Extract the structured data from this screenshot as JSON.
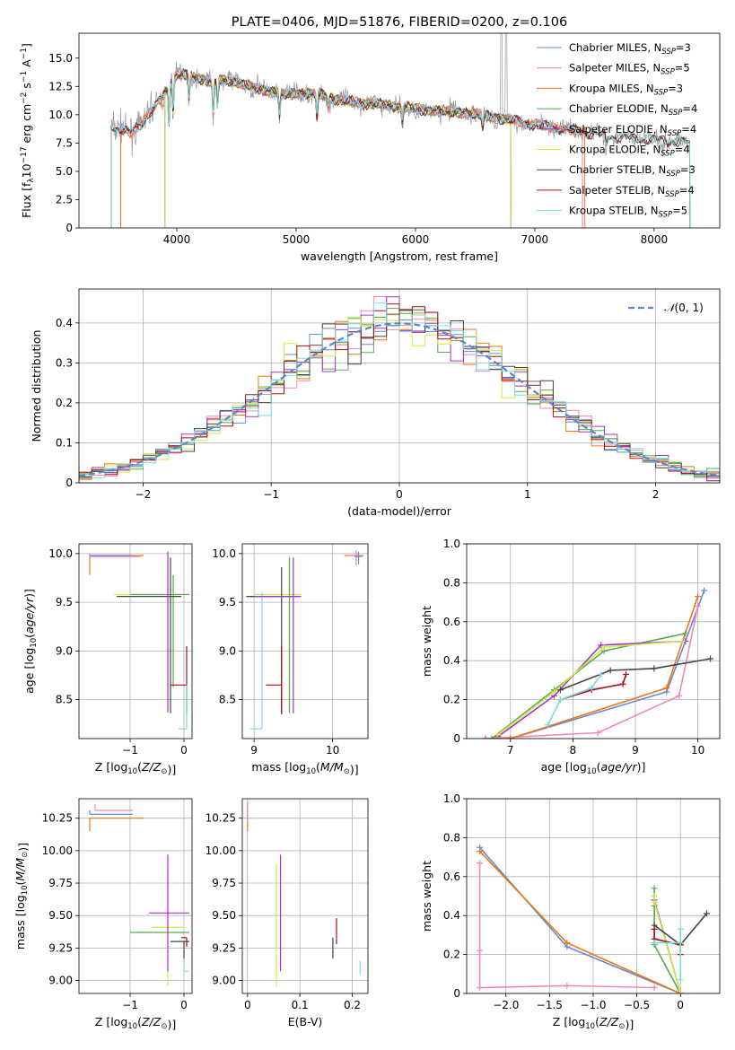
{
  "colors": {
    "c_miles": "#6688dd",
    "s_miles": "#ee88bb",
    "k_miles": "#ee7711",
    "c_elodie": "#55aa55",
    "s_elodie": "#aa33cc",
    "k_elodie": "#ccee44",
    "c_stelib": "#444444",
    "s_stelib": "#aa1111",
    "k_stelib": "#77dddd",
    "data": "#999999"
  },
  "chart_data": [
    {
      "id": "spectrum",
      "type": "line",
      "title": "PLATE=0406, MJD=51876, FIBERID=0200, z=0.106",
      "xlabel": "wavelength [Angstrom, rest frame]",
      "ylabel": "Flux [f$_\\lambda$10$^{-17}$ erg cm$^{-2}$ s$^{-1}$ A$^{-1}$]",
      "ylabel_html": "Flux [f<tspan font-size='9' dy='3'>λ</tspan><tspan dy='-3'>10</tspan><tspan font-size='9' dy='-5'>−17</tspan><tspan dy='5'> erg cm</tspan><tspan font-size='9' dy='-5'>−2</tspan><tspan dy='5'> s</tspan><tspan font-size='9' dy='-5'>−1</tspan><tspan dy='5'> A</tspan><tspan font-size='9' dy='-5'>−1</tspan><tspan dy='5'>]</tspan>",
      "xlim": [
        3180,
        8550
      ],
      "ylim": [
        0,
        17.2
      ],
      "xticks": [
        4000,
        5000,
        6000,
        7000,
        8000
      ],
      "yticks": [
        0.0,
        2.5,
        5.0,
        7.5,
        10.0,
        12.5,
        15.0
      ],
      "continuum": [
        [
          3450,
          9.0
        ],
        [
          3600,
          8.4
        ],
        [
          3700,
          9.2
        ],
        [
          3800,
          10.4
        ],
        [
          3900,
          12.0
        ],
        [
          4000,
          13.6
        ],
        [
          4100,
          13.4
        ],
        [
          4200,
          13.2
        ],
        [
          4300,
          12.8
        ],
        [
          4400,
          13.1
        ],
        [
          4500,
          12.9
        ],
        [
          4600,
          12.5
        ],
        [
          4700,
          12.3
        ],
        [
          4800,
          12.0
        ],
        [
          4900,
          11.8
        ],
        [
          5000,
          11.9
        ],
        [
          5200,
          11.8
        ],
        [
          5400,
          11.2
        ],
        [
          5600,
          11.0
        ],
        [
          5800,
          10.8
        ],
        [
          6000,
          10.5
        ],
        [
          6200,
          10.3
        ],
        [
          6400,
          10.2
        ],
        [
          6600,
          9.9
        ],
        [
          6800,
          9.5
        ],
        [
          7000,
          9.1
        ],
        [
          7200,
          8.8
        ],
        [
          7400,
          8.5
        ],
        [
          7600,
          8.1
        ],
        [
          7800,
          7.9
        ],
        [
          8000,
          7.8
        ],
        [
          8200,
          7.6
        ],
        [
          8300,
          7.5
        ]
      ],
      "legend": [
        {
          "label": "Chabrier MILES, N",
          "sub": "SSP",
          "tail": "=3",
          "color": "#6688dd"
        },
        {
          "label": "Salpeter MILES, N",
          "sub": "SSP",
          "tail": "=5",
          "color": "#ee88bb"
        },
        {
          "label": "Kroupa MILES, N",
          "sub": "SSP",
          "tail": "=3",
          "color": "#ee7711"
        },
        {
          "label": "Chabrier ELODIE, N",
          "sub": "SSP",
          "tail": "=4",
          "color": "#55aa55"
        },
        {
          "label": "Salpeter ELODIE, N",
          "sub": "SSP",
          "tail": "=4",
          "color": "#aa33cc"
        },
        {
          "label": "Kroupa ELODIE, N",
          "sub": "SSP",
          "tail": "=4",
          "color": "#ccee44"
        },
        {
          "label": "Chabrier STELIB, N",
          "sub": "SSP",
          "tail": "=3",
          "color": "#444444"
        },
        {
          "label": "Salpeter STELIB, N",
          "sub": "SSP",
          "tail": "=4",
          "color": "#aa1111"
        },
        {
          "label": "Kroupa STELIB, N",
          "sub": "SSP",
          "tail": "=5",
          "color": "#77dddd"
        }
      ]
    },
    {
      "id": "residuals",
      "type": "line",
      "xlabel": "(data-model)/error",
      "ylabel": "Normed distribution",
      "xlim": [
        -2.5,
        2.5
      ],
      "ylim": [
        0,
        0.485
      ],
      "xticks": [
        -2,
        -1,
        0,
        1,
        2
      ],
      "yticks": [
        0.0,
        0.1,
        0.2,
        0.3,
        0.4
      ],
      "legend": "𝒩(0, 1)",
      "hist_bin_width": 0.1
    },
    {
      "id": "age_vs_z",
      "type": "scatter",
      "xlabel": "Z [log10(Z/Z⊙)]",
      "ylabel": "age [log10(age/yr)]",
      "xlim": [
        -1.95,
        0.15
      ],
      "ylim": [
        8.1,
        10.1
      ],
      "xticks": [
        -1,
        0
      ],
      "yticks": [
        8.5,
        9.0,
        9.5,
        10.0
      ],
      "bars": [
        {
          "x": -1.75,
          "y": 9.98,
          "xerr": [
            0,
            1.0
          ],
          "yerr": [
            0.2,
            0
          ],
          "color": "#ee7711"
        },
        {
          "x": -1.75,
          "y": 9.98,
          "xerr": [
            0,
            0.8
          ],
          "yerr": [
            0,
            0.02
          ],
          "color": "#6688dd"
        },
        {
          "x": -1.75,
          "y": 9.97,
          "xerr": [
            0,
            0.95
          ],
          "yerr": [
            0,
            0.02
          ],
          "color": "#ee88bb"
        },
        {
          "x": -0.3,
          "y": 9.58,
          "xerr": [
            1.0,
            0.4
          ],
          "yerr": [
            1.2,
            0.4
          ],
          "color": "#ccee44"
        },
        {
          "x": -0.2,
          "y": 9.58,
          "xerr": [
            0.8,
            0.3
          ],
          "yerr": [
            0.95,
            0.2
          ],
          "color": "#55aa55"
        },
        {
          "x": -0.25,
          "y": 9.56,
          "xerr": [
            1.0,
            0.2
          ],
          "yerr": [
            1.2,
            0.4
          ],
          "color": "#444444"
        },
        {
          "x": 0.05,
          "y": 8.65,
          "xerr": [
            0.3,
            0.0
          ],
          "yerr": [
            0.3,
            0.4
          ],
          "color": "#aa1111"
        },
        {
          "x": 0.05,
          "y": 8.2,
          "xerr": [
            0.15,
            0
          ],
          "yerr": [
            0,
            0.45
          ],
          "color": "#77dddd"
        },
        {
          "x": -0.3,
          "y": 9.97,
          "xerr": [
            0,
            0
          ],
          "yerr": [
            1.6,
            0.05
          ],
          "color": "#aa33cc"
        }
      ]
    },
    {
      "id": "age_vs_mass",
      "type": "scatter",
      "xlabel": "mass [log10(M/M⊙)]",
      "xlim": [
        8.85,
        10.45
      ],
      "ylim": [
        8.1,
        10.1
      ],
      "xticks": [
        9,
        10
      ],
      "yticks": [
        8.5,
        9.0,
        9.5,
        10.0
      ],
      "bars": [
        {
          "x": 10.3,
          "y": 9.98,
          "xerr": [
            0.15,
            0.05
          ],
          "yerr": [
            0.1,
            0.05
          ],
          "color": "#ee7711"
        },
        {
          "x": 10.3,
          "y": 9.98,
          "xerr": [
            0.1,
            0.1
          ],
          "yerr": [
            0.1,
            0.05
          ],
          "color": "#ee88bb"
        },
        {
          "x": 10.33,
          "y": 9.97,
          "xerr": [
            0.05,
            0.05
          ],
          "yerr": [
            0.08,
            0.05
          ],
          "color": "#6688dd"
        },
        {
          "x": 9.45,
          "y": 9.58,
          "xerr": [
            0.45,
            0.15
          ],
          "yerr": [
            1.2,
            0.4
          ],
          "color": "#ccee44"
        },
        {
          "x": 9.45,
          "y": 9.56,
          "xerr": [
            0.5,
            0.1
          ],
          "yerr": [
            1.2,
            0.4
          ],
          "color": "#55aa55"
        },
        {
          "x": 9.35,
          "y": 9.56,
          "xerr": [
            0.45,
            0.2
          ],
          "yerr": [
            1.2,
            0.3
          ],
          "color": "#444444"
        },
        {
          "x": 9.35,
          "y": 8.65,
          "xerr": [
            0.2,
            0.0
          ],
          "yerr": [
            0.3,
            0.4
          ],
          "color": "#aa1111"
        },
        {
          "x": 9.1,
          "y": 8.2,
          "xerr": [
            0.15,
            0
          ],
          "yerr": [
            0,
            1.4
          ],
          "color": "#77dddd"
        },
        {
          "x": 9.5,
          "y": 9.56,
          "xerr": [
            0.5,
            0.1
          ],
          "yerr": [
            1.2,
            0.4
          ],
          "color": "#aa33cc"
        }
      ]
    },
    {
      "id": "weight_vs_age",
      "type": "line",
      "xlabel": "age [log10(age/yr)]",
      "ylabel": "mass weight",
      "xlim": [
        6.3,
        10.35
      ],
      "ylim": [
        0,
        1.0
      ],
      "xticks": [
        7,
        8,
        9,
        10
      ],
      "yticks": [
        0.0,
        0.2,
        0.4,
        0.6,
        0.8,
        1.0
      ],
      "series": [
        {
          "color": "#6688dd",
          "x": [
            6.6,
            7.0,
            9.5,
            10.1
          ],
          "y": [
            0.0,
            0.0,
            0.24,
            0.76
          ]
        },
        {
          "color": "#ee88bb",
          "x": [
            6.6,
            8.4,
            9.7,
            10.0
          ],
          "y": [
            0.0,
            0.03,
            0.22,
            0.68
          ]
        },
        {
          "color": "#ee7711",
          "x": [
            6.6,
            7.0,
            9.5,
            10.0
          ],
          "y": [
            0.0,
            0.0,
            0.26,
            0.73
          ]
        },
        {
          "color": "#55aa55",
          "x": [
            6.7,
            7.7,
            8.5,
            9.8
          ],
          "y": [
            0.0,
            0.25,
            0.45,
            0.54
          ]
        },
        {
          "color": "#aa33cc",
          "x": [
            6.8,
            7.7,
            8.45,
            9.8
          ],
          "y": [
            0.01,
            0.22,
            0.48,
            0.5
          ]
        },
        {
          "color": "#ccee44",
          "x": [
            6.8,
            7.7,
            8.5,
            9.75
          ],
          "y": [
            0.02,
            0.24,
            0.47,
            0.5
          ]
        },
        {
          "color": "#444444",
          "x": [
            7.8,
            8.6,
            9.3,
            10.2
          ],
          "y": [
            0.25,
            0.35,
            0.36,
            0.41
          ]
        },
        {
          "color": "#aa1111",
          "x": [
            7.8,
            8.3,
            8.8,
            8.85
          ],
          "y": [
            0.2,
            0.25,
            0.28,
            0.33
          ]
        },
        {
          "color": "#77dddd",
          "x": [
            7.6,
            7.8,
            8.3,
            8.45
          ],
          "y": [
            0.07,
            0.2,
            0.26,
            0.33
          ]
        }
      ]
    },
    {
      "id": "mass_vs_z",
      "type": "scatter",
      "xlabel": "Z [log10(Z/Z⊙)]",
      "ylabel": "mass [log10(M/M⊙)]",
      "xlim": [
        -1.95,
        0.15
      ],
      "ylim": [
        8.9,
        10.4
      ],
      "xticks": [
        -1,
        0
      ],
      "yticks": [
        9.0,
        9.25,
        9.5,
        9.75,
        10.0,
        10.25
      ],
      "bars": [
        {
          "x": -1.75,
          "y": 10.25,
          "xerr": [
            0,
            1.0
          ],
          "yerr": [
            0.1,
            0
          ],
          "color": "#ee7711"
        },
        {
          "x": -1.75,
          "y": 10.28,
          "xerr": [
            0,
            0.8
          ],
          "yerr": [
            0,
            0.03
          ],
          "color": "#6688dd"
        },
        {
          "x": -1.65,
          "y": 10.31,
          "xerr": [
            0,
            0.7
          ],
          "yerr": [
            0,
            0.05
          ],
          "color": "#ee88bb"
        },
        {
          "x": -0.3,
          "y": 9.41,
          "xerr": [
            0.3,
            0.3
          ],
          "yerr": [
            0.45,
            0.45
          ],
          "color": "#ccee44"
        },
        {
          "x": -0.3,
          "y": 9.37,
          "xerr": [
            0.7,
            0.4
          ],
          "yerr": [
            0.0,
            0.0
          ],
          "color": "#55aa55"
        },
        {
          "x": -0.3,
          "y": 9.52,
          "xerr": [
            0.35,
            0.4
          ],
          "yerr": [
            0.45,
            0.45
          ],
          "color": "#aa33cc"
        },
        {
          "x": 0.0,
          "y": 9.3,
          "xerr": [
            0.25,
            0.1
          ],
          "yerr": [
            0.15,
            0.0
          ],
          "color": "#444444"
        },
        {
          "x": 0.05,
          "y": 9.33,
          "xerr": [
            0.1,
            0.0
          ],
          "yerr": [
            0.07,
            0.0
          ],
          "color": "#aa1111"
        },
        {
          "x": 0.0,
          "y": 9.07,
          "xerr": [
            0.0,
            0.08
          ],
          "yerr": [
            0.0,
            0.1
          ],
          "color": "#77dddd"
        }
      ]
    },
    {
      "id": "mass_vs_ebv",
      "type": "scatter",
      "xlabel": "E(B-V)",
      "xlim": [
        -0.01,
        0.23
      ],
      "ylim": [
        8.9,
        10.4
      ],
      "xticks": [
        0.0,
        0.1,
        0.2
      ],
      "yticks": [
        9.0,
        9.25,
        9.5,
        9.75,
        10.0,
        10.25
      ],
      "bars": [
        {
          "x": 0.0,
          "y": 10.25,
          "yerr": [
            0.1,
            0.1
          ],
          "color": "#ee7711"
        },
        {
          "x": 0.0,
          "y": 10.28,
          "yerr": [
            0.05,
            0.1
          ],
          "color": "#ee88bb"
        },
        {
          "x": 0.055,
          "y": 9.45,
          "yerr": [
            0.5,
            0.45
          ],
          "color": "#ccee44"
        },
        {
          "x": 0.063,
          "y": 9.52,
          "yerr": [
            0.45,
            0.45
          ],
          "color": "#aa33cc"
        },
        {
          "x": 0.163,
          "y": 9.25,
          "yerr": [
            0.08,
            0.08
          ],
          "color": "#444444"
        },
        {
          "x": 0.17,
          "y": 9.38,
          "yerr": [
            0.1,
            0.1
          ],
          "color": "#aa1111"
        },
        {
          "x": 0.215,
          "y": 9.1,
          "yerr": [
            0.05,
            0.05
          ],
          "color": "#77dddd"
        }
      ]
    },
    {
      "id": "weight_vs_z",
      "type": "line",
      "xlabel": "Z [log10(Z/Z⊙)]",
      "ylabel": "mass weight",
      "xlim": [
        -2.45,
        0.45
      ],
      "ylim": [
        0,
        1.0
      ],
      "xticks": [
        -2.0,
        -1.5,
        -1.0,
        -0.5,
        0.0
      ],
      "yticks": [
        0.0,
        0.2,
        0.4,
        0.6,
        0.8,
        1.0
      ],
      "series": [
        {
          "color": "#6688dd",
          "x": [
            -2.3,
            -1.3,
            0.0
          ],
          "y": [
            0.75,
            0.24,
            0.0
          ]
        },
        {
          "color": "#ee88bb",
          "x": [
            -2.3,
            -2.3,
            -2.3,
            -1.3,
            -0.3
          ],
          "y": [
            0.67,
            0.22,
            0.03,
            0.04,
            0.03
          ]
        },
        {
          "color": "#ee7711",
          "x": [
            -2.3,
            -1.3,
            0.0
          ],
          "y": [
            0.73,
            0.26,
            0.0
          ]
        },
        {
          "color": "#55aa55",
          "x": [
            -0.3,
            -0.3,
            -0.3,
            0.0
          ],
          "y": [
            0.54,
            0.45,
            0.25,
            0.0
          ]
        },
        {
          "color": "#aa33cc",
          "x": [
            -0.3,
            -0.3,
            0.0
          ],
          "y": [
            0.5,
            0.48,
            0.0
          ]
        },
        {
          "color": "#ccee44",
          "x": [
            -0.3,
            -0.3,
            0.0
          ],
          "y": [
            0.5,
            0.47,
            0.0
          ]
        },
        {
          "color": "#444444",
          "x": [
            -0.3,
            0.0,
            0.3
          ],
          "y": [
            0.35,
            0.25,
            0.41
          ]
        },
        {
          "color": "#aa1111",
          "x": [
            -0.3,
            -0.3,
            0.0,
            0.0
          ],
          "y": [
            0.33,
            0.28,
            0.25,
            0.2
          ]
        },
        {
          "color": "#77dddd",
          "x": [
            -0.3,
            0.0,
            0.0,
            0.0
          ],
          "y": [
            0.26,
            0.26,
            0.33,
            0.07
          ]
        }
      ]
    }
  ]
}
